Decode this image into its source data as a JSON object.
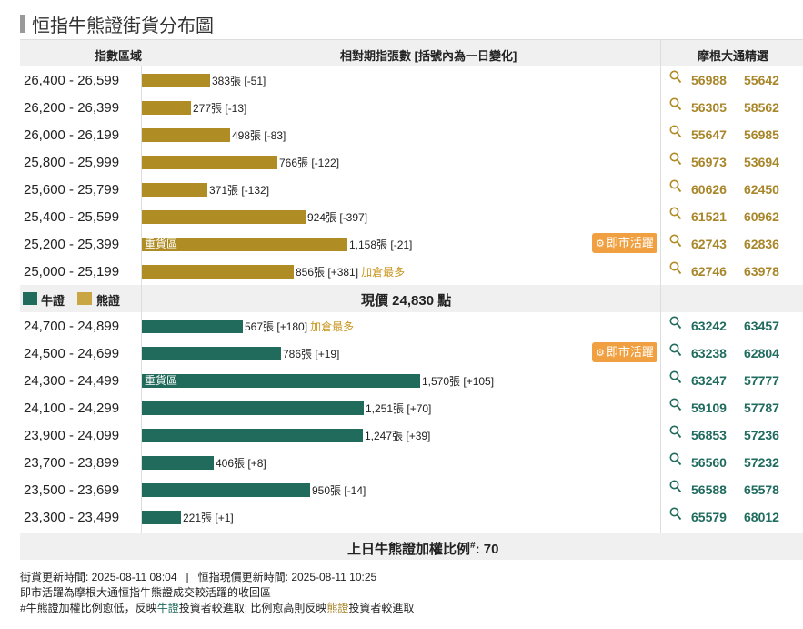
{
  "title": "恒指牛熊證街貨分布圖",
  "headers": {
    "range": "指數區域",
    "qty": "相對期指張數 [括號內為一日變化]",
    "picks": "摩根大通精選"
  },
  "colors": {
    "bear": "#b08c24",
    "bull": "#216b5d",
    "accent": "#f0a040",
    "header_bg": "#f0f0f0"
  },
  "bear_rows": [
    {
      "range": "26,400 - 26,599",
      "value": 383,
      "text": "383張 [-51]",
      "tag": "",
      "heavy": "",
      "hot": "",
      "c1": "56988",
      "c2": "55642"
    },
    {
      "range": "26,200 - 26,399",
      "value": 277,
      "text": "277張 [-13]",
      "tag": "",
      "heavy": "",
      "hot": "",
      "c1": "56305",
      "c2": "58562"
    },
    {
      "range": "26,000 - 26,199",
      "value": 498,
      "text": "498張 [-83]",
      "tag": "",
      "heavy": "",
      "hot": "",
      "c1": "55647",
      "c2": "56985"
    },
    {
      "range": "25,800 - 25,999",
      "value": 766,
      "text": "766張 [-122]",
      "tag": "",
      "heavy": "",
      "hot": "",
      "c1": "56973",
      "c2": "53694"
    },
    {
      "range": "25,600 - 25,799",
      "value": 371,
      "text": "371張 [-132]",
      "tag": "",
      "heavy": "",
      "hot": "",
      "c1": "60626",
      "c2": "62450"
    },
    {
      "range": "25,400 - 25,599",
      "value": 924,
      "text": "924張 [-397]",
      "tag": "",
      "heavy": "",
      "hot": "",
      "c1": "61521",
      "c2": "60962"
    },
    {
      "range": "25,200 - 25,399",
      "value": 1158,
      "text": "1,158張 [-21]",
      "tag": "",
      "heavy": "重貨區",
      "hot": "即市活躍",
      "c1": "62743",
      "c2": "62836"
    },
    {
      "range": "25,000 - 25,199",
      "value": 856,
      "text": "856張 [+381]",
      "tag": "加倉最多",
      "heavy": "",
      "hot": "",
      "c1": "62746",
      "c2": "63978"
    }
  ],
  "legend": {
    "bull": "牛證",
    "bear": "熊證"
  },
  "current_price": "現價 24,830 點",
  "bull_rows": [
    {
      "range": "24,700 - 24,899",
      "value": 567,
      "text": "567張 [+180]",
      "tag": "加倉最多",
      "heavy": "",
      "hot": "",
      "c1": "63242",
      "c2": "63457"
    },
    {
      "range": "24,500 - 24,699",
      "value": 786,
      "text": "786張 [+19]",
      "tag": "",
      "heavy": "",
      "hot": "即市活躍",
      "c1": "63238",
      "c2": "62804"
    },
    {
      "range": "24,300 - 24,499",
      "value": 1570,
      "text": "1,570張 [+105]",
      "tag": "",
      "heavy": "重貨區",
      "hot": "",
      "c1": "63247",
      "c2": "57777"
    },
    {
      "range": "24,100 - 24,299",
      "value": 1251,
      "text": "1,251張 [+70]",
      "tag": "",
      "heavy": "",
      "hot": "",
      "c1": "59109",
      "c2": "57787"
    },
    {
      "range": "23,900 - 24,099",
      "value": 1247,
      "text": "1,247張 [+39]",
      "tag": "",
      "heavy": "",
      "hot": "",
      "c1": "56853",
      "c2": "57236"
    },
    {
      "range": "23,700 - 23,899",
      "value": 406,
      "text": "406張 [+8]",
      "tag": "",
      "heavy": "",
      "hot": "",
      "c1": "56560",
      "c2": "57232"
    },
    {
      "range": "23,500 - 23,699",
      "value": 950,
      "text": "950張 [-14]",
      "tag": "",
      "heavy": "",
      "hot": "",
      "c1": "56588",
      "c2": "65578"
    },
    {
      "range": "23,300 - 23,499",
      "value": 221,
      "text": "221張 [+1]",
      "tag": "",
      "heavy": "",
      "hot": "",
      "c1": "65579",
      "c2": "68012"
    }
  ],
  "footer": {
    "ratio_label": "上日牛熊證加權比例",
    "ratio_sup": "#",
    "ratio_value": ": 70"
  },
  "notes": {
    "line1": "街貨更新時間: 2025-08-11 08:04   |   恒指現價更新時間: 2025-08-11 10:25",
    "line2": "即市活躍為摩根大通恒指牛熊證成交較活躍的收回區",
    "line3_a": "#牛熊證加權比例愈低，反映",
    "line3_b": "牛證",
    "line3_c": "投資者較進取; 比例愈高則反映",
    "line3_d": "熊證",
    "line3_e": "投資者較進取"
  },
  "chart_data": {
    "type": "bar",
    "orientation": "horizontal",
    "title": "恒指牛熊證街貨分布圖",
    "categories": [
      "26,400 - 26,599",
      "26,200 - 26,399",
      "26,000 - 26,199",
      "25,800 - 25,999",
      "25,600 - 25,799",
      "25,400 - 25,599",
      "25,200 - 25,399",
      "25,000 - 25,199",
      "24,700 - 24,899",
      "24,500 - 24,699",
      "24,300 - 24,499",
      "24,100 - 24,299",
      "23,900 - 24,099",
      "23,700 - 23,899",
      "23,500 - 23,699",
      "23,300 - 23,499"
    ],
    "series": [
      {
        "name": "熊證",
        "values": [
          383,
          277,
          498,
          766,
          371,
          924,
          1158,
          856,
          null,
          null,
          null,
          null,
          null,
          null,
          null,
          null
        ],
        "daily_change": [
          -51,
          -13,
          -83,
          -122,
          -132,
          -397,
          -21,
          381,
          null,
          null,
          null,
          null,
          null,
          null,
          null,
          null
        ]
      },
      {
        "name": "牛證",
        "values": [
          null,
          null,
          null,
          null,
          null,
          null,
          null,
          null,
          567,
          786,
          1570,
          1251,
          1247,
          406,
          950,
          221
        ],
        "daily_change": [
          null,
          null,
          null,
          null,
          null,
          null,
          null,
          null,
          180,
          19,
          105,
          70,
          39,
          8,
          -14,
          1
        ]
      }
    ],
    "xlim": [
      0,
      1600
    ]
  }
}
